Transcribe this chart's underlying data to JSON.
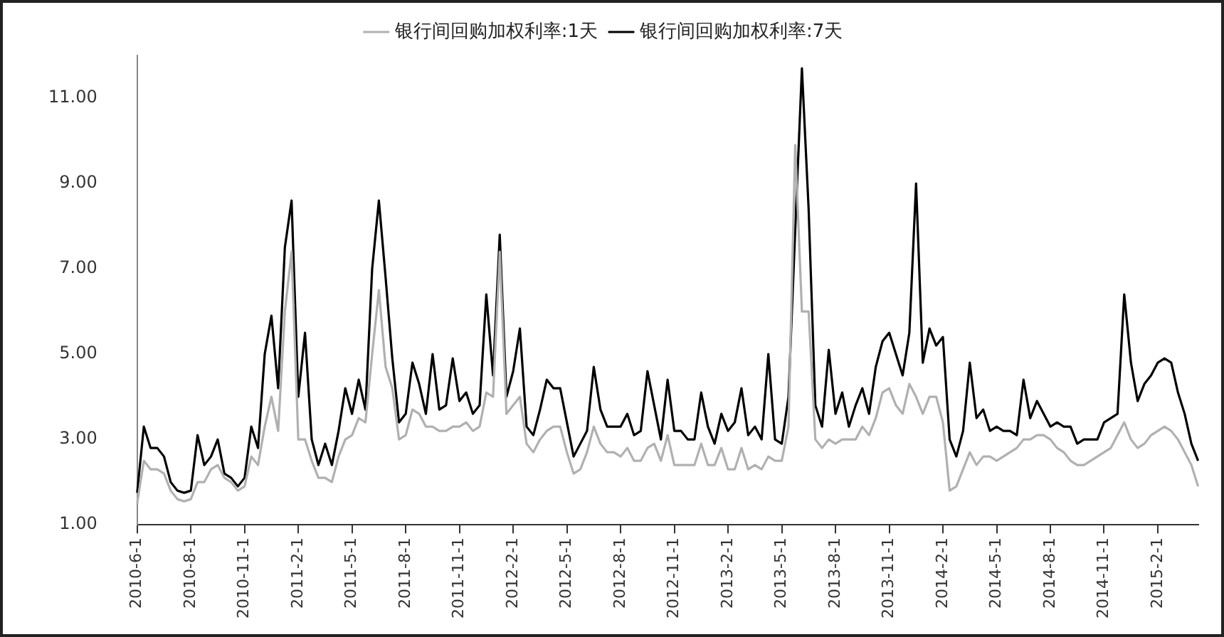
{
  "chart_data": {
    "type": "line",
    "categories": [
      "2010-6-1",
      null,
      null,
      null,
      null,
      null,
      null,
      null,
      "2010-8-1",
      null,
      null,
      null,
      null,
      null,
      null,
      null,
      "2010-11-1",
      null,
      null,
      null,
      null,
      null,
      null,
      null,
      "2011-2-1",
      null,
      null,
      null,
      null,
      null,
      null,
      null,
      "2011-5-1",
      null,
      null,
      null,
      null,
      null,
      null,
      null,
      "2011-8-1",
      null,
      null,
      null,
      null,
      null,
      null,
      null,
      "2011-11-1",
      null,
      null,
      null,
      null,
      null,
      null,
      null,
      "2012-2-1",
      null,
      null,
      null,
      null,
      null,
      null,
      null,
      "2012-5-1",
      null,
      null,
      null,
      null,
      null,
      null,
      null,
      "2012-8-1",
      null,
      null,
      null,
      null,
      null,
      null,
      null,
      "2012-11-1",
      null,
      null,
      null,
      null,
      null,
      null,
      null,
      "2013-2-1",
      null,
      null,
      null,
      null,
      null,
      null,
      null,
      "2013-5-1",
      null,
      null,
      null,
      null,
      null,
      null,
      null,
      "2013-8-1",
      null,
      null,
      null,
      null,
      null,
      null,
      null,
      "2013-11-1",
      null,
      null,
      null,
      null,
      null,
      null,
      null,
      "2014-2-1",
      null,
      null,
      null,
      null,
      null,
      null,
      null,
      "2014-5-1",
      null,
      null,
      null,
      null,
      null,
      null,
      null,
      "2014-8-1",
      null,
      null,
      null,
      null,
      null,
      null,
      null,
      "2014-11-1",
      null,
      null,
      null,
      null,
      null,
      null,
      null,
      "2015-2-1",
      null,
      null,
      null,
      null,
      null,
      null
    ],
    "series": [
      {
        "name": "银行间回购加权利率:1天",
        "color": "#b0b0b0",
        "values": [
          1.5,
          2.5,
          2.3,
          2.3,
          2.2,
          1.8,
          1.6,
          1.55,
          1.6,
          2.0,
          2.0,
          2.3,
          2.4,
          2.1,
          2.0,
          1.8,
          1.9,
          2.6,
          2.4,
          3.3,
          4.0,
          3.2,
          6.0,
          7.4,
          3.0,
          3.0,
          2.5,
          2.1,
          2.1,
          2.0,
          2.6,
          3.0,
          3.1,
          3.5,
          3.4,
          5.0,
          6.5,
          4.7,
          4.2,
          3.0,
          3.1,
          3.7,
          3.6,
          3.3,
          3.3,
          3.2,
          3.2,
          3.3,
          3.3,
          3.4,
          3.2,
          3.3,
          4.1,
          4.0,
          7.4,
          3.6,
          3.8,
          4.0,
          2.9,
          2.7,
          3.0,
          3.2,
          3.3,
          3.3,
          2.7,
          2.2,
          2.3,
          2.7,
          3.3,
          2.9,
          2.7,
          2.7,
          2.6,
          2.8,
          2.5,
          2.5,
          2.8,
          2.9,
          2.5,
          3.1,
          2.4,
          2.4,
          2.4,
          2.4,
          2.9,
          2.4,
          2.4,
          2.8,
          2.3,
          2.3,
          2.8,
          2.3,
          2.4,
          2.3,
          2.6,
          2.5,
          2.5,
          3.3,
          9.9,
          6.0,
          6.0,
          3.0,
          2.8,
          3.0,
          2.9,
          3.0,
          3.0,
          3.0,
          3.3,
          3.1,
          3.5,
          4.1,
          4.2,
          3.8,
          3.6,
          4.3,
          4.0,
          3.6,
          4.0,
          4.0,
          3.4,
          1.8,
          1.9,
          2.3,
          2.7,
          2.4,
          2.6,
          2.6,
          2.5,
          2.6,
          2.7,
          2.8,
          3.0,
          3.0,
          3.1,
          3.1,
          3.0,
          2.8,
          2.7,
          2.5,
          2.4,
          2.4,
          2.5,
          2.6,
          2.7,
          2.8,
          3.1,
          3.4,
          3.0,
          2.8,
          2.9,
          3.1,
          3.2,
          3.3,
          3.2,
          3.0,
          2.7,
          2.4,
          1.9
        ]
      },
      {
        "name": "银行间回购加权利率:7天",
        "color": "#000000",
        "values": [
          1.75,
          3.3,
          2.8,
          2.8,
          2.6,
          2.0,
          1.8,
          1.75,
          1.8,
          3.1,
          2.4,
          2.6,
          3.0,
          2.2,
          2.1,
          1.9,
          2.1,
          3.3,
          2.8,
          5.0,
          5.9,
          4.2,
          7.5,
          8.6,
          4.0,
          5.5,
          3.0,
          2.4,
          2.9,
          2.4,
          3.2,
          4.2,
          3.6,
          4.4,
          3.7,
          7.0,
          8.6,
          6.8,
          4.9,
          3.4,
          3.6,
          4.8,
          4.3,
          3.6,
          5.0,
          3.7,
          3.8,
          4.9,
          3.9,
          4.1,
          3.6,
          3.8,
          6.4,
          4.5,
          7.8,
          4.0,
          4.6,
          5.6,
          3.3,
          3.1,
          3.7,
          4.4,
          4.2,
          4.2,
          3.4,
          2.6,
          2.9,
          3.2,
          4.7,
          3.7,
          3.3,
          3.3,
          3.3,
          3.6,
          3.1,
          3.2,
          4.6,
          3.8,
          3.0,
          4.4,
          3.2,
          3.2,
          3.0,
          3.0,
          4.1,
          3.3,
          2.9,
          3.6,
          3.2,
          3.4,
          4.2,
          3.1,
          3.3,
          3.0,
          5.0,
          3.0,
          2.9,
          4.0,
          7.9,
          11.7,
          8.4,
          3.8,
          3.3,
          5.1,
          3.6,
          4.1,
          3.3,
          3.8,
          4.2,
          3.6,
          4.7,
          5.3,
          5.5,
          5.0,
          4.5,
          5.5,
          9.0,
          4.8,
          5.6,
          5.2,
          5.4,
          3.0,
          2.6,
          3.2,
          4.8,
          3.5,
          3.7,
          3.2,
          3.3,
          3.2,
          3.2,
          3.1,
          4.4,
          3.5,
          3.9,
          3.6,
          3.3,
          3.4,
          3.3,
          3.3,
          2.9,
          3.0,
          3.0,
          3.0,
          3.4,
          3.5,
          3.6,
          6.4,
          4.8,
          3.9,
          4.3,
          4.5,
          4.8,
          4.9,
          4.8,
          4.1,
          3.6,
          2.9,
          2.5
        ]
      }
    ],
    "ylim": [
      1,
      12
    ],
    "yticks": [
      {
        "value": 1,
        "label": "1.00"
      },
      {
        "value": 3,
        "label": "3.00"
      },
      {
        "value": 5,
        "label": "5.00"
      },
      {
        "value": 7,
        "label": "7.00"
      },
      {
        "value": 9,
        "label": "9.00"
      },
      {
        "value": 11,
        "label": "11.00"
      }
    ],
    "grid": false,
    "legend": "top",
    "marker": "none",
    "line_style": "solid"
  }
}
